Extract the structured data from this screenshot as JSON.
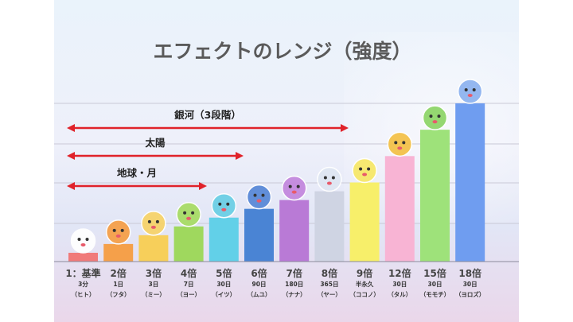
{
  "colors": {
    "bars": [
      "#f07a7a",
      "#f5a04a",
      "#f7cf5a",
      "#9fd85e",
      "#62d0e8",
      "#4a84d4",
      "#b97ad6",
      "#cfd4e3",
      "#f7ef6a",
      "#f8b4d4",
      "#9ee27a",
      "#6f9df0"
    ],
    "arrow": "#e0222a",
    "gridline": "#c9c9d6"
  },
  "chart_data": {
    "type": "bar",
    "title": "エフェクトのレンジ（強度）",
    "categories": [
      "1：基準",
      "2倍",
      "3倍",
      "4倍",
      "5倍",
      "6倍",
      "7倍",
      "8倍",
      "9倍",
      "12倍",
      "15倍",
      "18倍"
    ],
    "values": [
      1,
      2,
      3,
      4,
      5,
      6,
      7,
      8,
      9,
      12,
      15,
      18
    ],
    "durations": [
      "3分",
      "1日",
      "3日",
      "7日",
      "30日",
      "90日",
      "180日",
      "365日",
      "半永久",
      "30日",
      "30日",
      "30日"
    ],
    "nicknames": [
      "（ヒト）",
      "（フタ）",
      "（ミー）",
      "（ヨー）",
      "（イツ）",
      "（ムユ）",
      "（ナナ）",
      "（ヤー）",
      "（ココノ）",
      "（タル）",
      "（モモチ）",
      "（ヨロズ）"
    ],
    "ylim": [
      0,
      18
    ],
    "grid": true,
    "ranges": [
      {
        "label": "地球・月",
        "from_index": 0,
        "to_index": 3
      },
      {
        "label": "太陽",
        "from_index": 0,
        "to_index": 4
      },
      {
        "label": "銀河（3段階）",
        "from_index": 0,
        "to_index": 7
      }
    ]
  }
}
